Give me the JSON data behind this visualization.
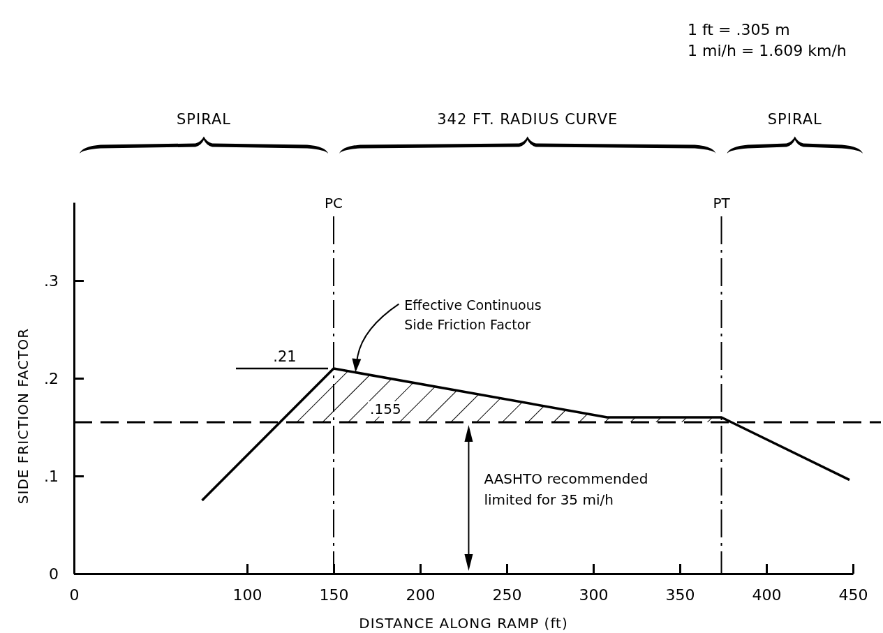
{
  "chart_data": {
    "type": "line",
    "xlabel": "DISTANCE  ALONG  RAMP  (ft)",
    "ylabel": "SIDE  FRICTION  FACTOR",
    "xlim": [
      0,
      450
    ],
    "xticks": [
      0,
      100,
      150,
      200,
      250,
      300,
      350,
      400,
      450
    ],
    "ylim": [
      0,
      0.38
    ],
    "yticks": [
      {
        "value": 0,
        "label": "0"
      },
      {
        "value": 0.1,
        "label": ".1"
      },
      {
        "value": 0.2,
        "label": ".2"
      },
      {
        "value": 0.3,
        "label": ".3"
      }
    ],
    "series": [
      {
        "color": "#000000",
        "x": [
          74,
          150,
          308,
          374,
          448
        ],
        "values": [
          0.075,
          0.21,
          0.16,
          0.16,
          0.096
        ]
      }
    ],
    "ref_lines": [
      {
        "axis": "x",
        "value": 150,
        "label": "PC",
        "line_style": "dashed"
      },
      {
        "axis": "x",
        "value": 374,
        "label": "PT",
        "line_style": "dashed"
      },
      {
        "axis": "y",
        "value": 0.155,
        "label": ".155",
        "line_style": "dashed"
      }
    ],
    "annotations": [
      "1 ft = .305 m",
      "1 mi/h = 1.609 km/h",
      "SPIRAL",
      "342  FT.  RADIUS  CURVE",
      "SPIRAL",
      ".21",
      "Effective Continuous\nSide Friction Factor",
      "AASHTO recommended\nlimited for 35 mi/h"
    ],
    "marker": "none",
    "line_style": "solid"
  }
}
